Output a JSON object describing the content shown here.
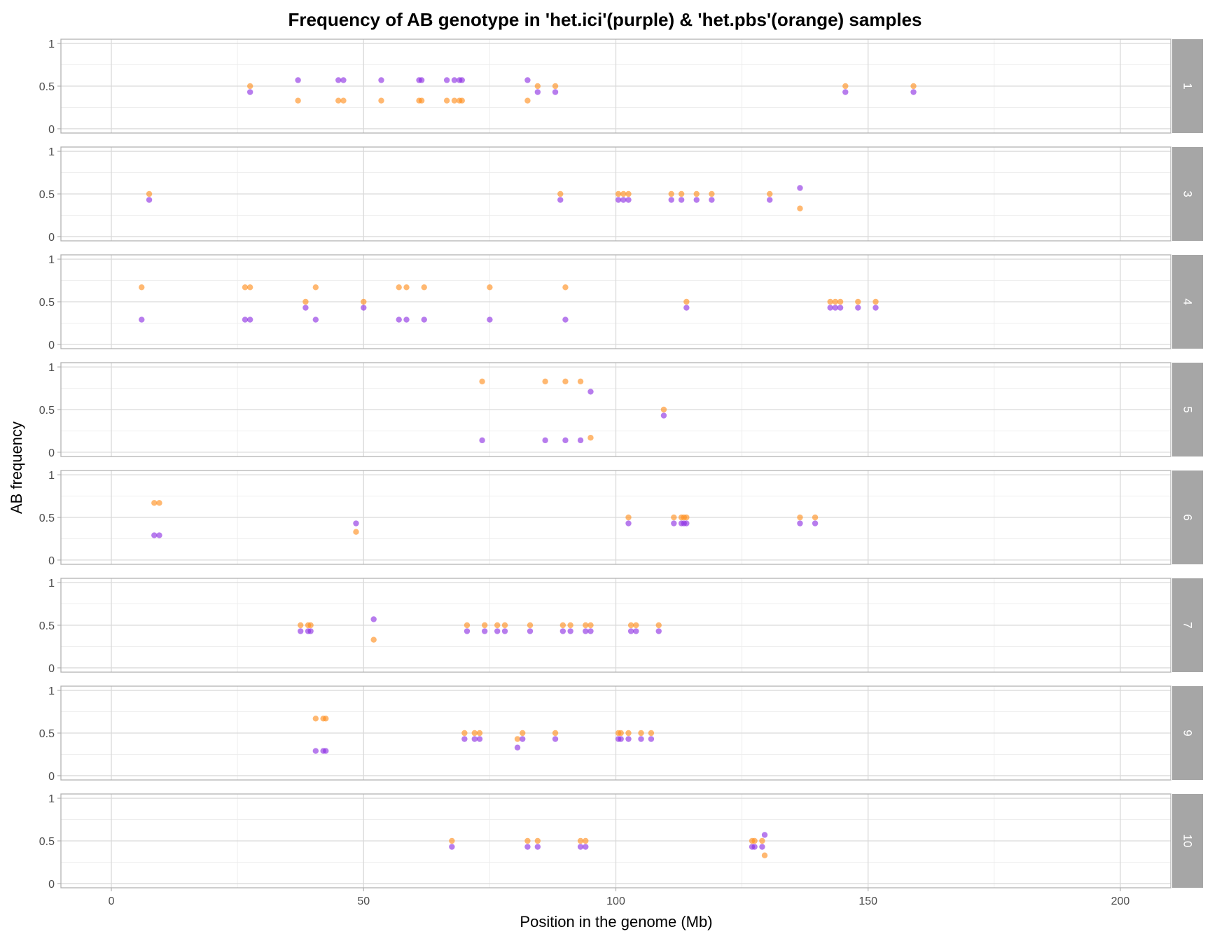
{
  "chart_data": {
    "type": "scatter",
    "title": "Frequency of AB genotype in 'het.ici'(purple) & 'het.pbs'(orange) samples",
    "xlabel": "Position in the genome (Mb)",
    "ylabel": "AB frequency",
    "xlim": [
      -10,
      210
    ],
    "ylim": [
      -0.05,
      1.05
    ],
    "x_ticks": [
      0,
      50,
      100,
      150,
      200
    ],
    "y_ticks": [
      0,
      0.5,
      1
    ],
    "y_tick_labels": [
      "0",
      "0.5",
      "1"
    ],
    "grid": true,
    "colors": {
      "het.ici": "#8a2be2",
      "het.pbs": "#ff8c1a"
    },
    "series_keys": [
      "het.ici",
      "het.pbs"
    ],
    "panels": [
      {
        "label": "1",
        "het.ici": [
          [
            27.5,
            0.43
          ],
          [
            37,
            0.57
          ],
          [
            45,
            0.57
          ],
          [
            46,
            0.57
          ],
          [
            53.5,
            0.57
          ],
          [
            61,
            0.57
          ],
          [
            61.5,
            0.57
          ],
          [
            66.5,
            0.57
          ],
          [
            68,
            0.57
          ],
          [
            69,
            0.57
          ],
          [
            69.5,
            0.57
          ],
          [
            82.5,
            0.57
          ],
          [
            84.5,
            0.43
          ],
          [
            88,
            0.43
          ],
          [
            145.5,
            0.43
          ],
          [
            159,
            0.43
          ]
        ],
        "het.pbs": [
          [
            27.5,
            0.5
          ],
          [
            37,
            0.33
          ],
          [
            45,
            0.33
          ],
          [
            46,
            0.33
          ],
          [
            53.5,
            0.33
          ],
          [
            61,
            0.33
          ],
          [
            61.5,
            0.33
          ],
          [
            66.5,
            0.33
          ],
          [
            68,
            0.33
          ],
          [
            69,
            0.33
          ],
          [
            69.5,
            0.33
          ],
          [
            82.5,
            0.33
          ],
          [
            84.5,
            0.5
          ],
          [
            88,
            0.5
          ],
          [
            145.5,
            0.5
          ],
          [
            159,
            0.5
          ]
        ]
      },
      {
        "label": "3",
        "het.ici": [
          [
            7.5,
            0.43
          ],
          [
            89,
            0.43
          ],
          [
            100.5,
            0.43
          ],
          [
            101.5,
            0.43
          ],
          [
            102.5,
            0.43
          ],
          [
            111,
            0.43
          ],
          [
            113,
            0.43
          ],
          [
            116,
            0.43
          ],
          [
            119,
            0.43
          ],
          [
            130.5,
            0.43
          ],
          [
            136.5,
            0.57
          ]
        ],
        "het.pbs": [
          [
            7.5,
            0.5
          ],
          [
            89,
            0.5
          ],
          [
            100.5,
            0.5
          ],
          [
            101.5,
            0.5
          ],
          [
            102.5,
            0.5
          ],
          [
            111,
            0.5
          ],
          [
            113,
            0.5
          ],
          [
            116,
            0.5
          ],
          [
            119,
            0.5
          ],
          [
            130.5,
            0.5
          ],
          [
            136.5,
            0.33
          ]
        ]
      },
      {
        "label": "4",
        "het.ici": [
          [
            6,
            0.29
          ],
          [
            26.5,
            0.29
          ],
          [
            27.5,
            0.29
          ],
          [
            38.5,
            0.43
          ],
          [
            40.5,
            0.29
          ],
          [
            50,
            0.43
          ],
          [
            57,
            0.29
          ],
          [
            58.5,
            0.29
          ],
          [
            62,
            0.29
          ],
          [
            75,
            0.29
          ],
          [
            90,
            0.29
          ],
          [
            114,
            0.43
          ],
          [
            142.5,
            0.43
          ],
          [
            143.5,
            0.43
          ],
          [
            144.5,
            0.43
          ],
          [
            148,
            0.43
          ],
          [
            151.5,
            0.43
          ]
        ],
        "het.pbs": [
          [
            6,
            0.67
          ],
          [
            26.5,
            0.67
          ],
          [
            27.5,
            0.67
          ],
          [
            38.5,
            0.5
          ],
          [
            40.5,
            0.67
          ],
          [
            50,
            0.5
          ],
          [
            57,
            0.67
          ],
          [
            58.5,
            0.67
          ],
          [
            62,
            0.67
          ],
          [
            75,
            0.67
          ],
          [
            90,
            0.67
          ],
          [
            114,
            0.5
          ],
          [
            142.5,
            0.5
          ],
          [
            143.5,
            0.5
          ],
          [
            144.5,
            0.5
          ],
          [
            148,
            0.5
          ],
          [
            151.5,
            0.5
          ]
        ]
      },
      {
        "label": "5",
        "het.ici": [
          [
            73.5,
            0.14
          ],
          [
            86,
            0.14
          ],
          [
            90,
            0.14
          ],
          [
            93,
            0.14
          ],
          [
            95,
            0.71
          ],
          [
            109.5,
            0.43
          ]
        ],
        "het.pbs": [
          [
            73.5,
            0.83
          ],
          [
            86,
            0.83
          ],
          [
            90,
            0.83
          ],
          [
            93,
            0.83
          ],
          [
            95,
            0.17
          ],
          [
            109.5,
            0.5
          ]
        ]
      },
      {
        "label": "6",
        "het.ici": [
          [
            8.5,
            0.29
          ],
          [
            9.5,
            0.29
          ],
          [
            48.5,
            0.43
          ],
          [
            102.5,
            0.43
          ],
          [
            111.5,
            0.43
          ],
          [
            113,
            0.43
          ],
          [
            113.5,
            0.43
          ],
          [
            114,
            0.43
          ],
          [
            136.5,
            0.43
          ],
          [
            139.5,
            0.43
          ]
        ],
        "het.pbs": [
          [
            8.5,
            0.67
          ],
          [
            9.5,
            0.67
          ],
          [
            48.5,
            0.33
          ],
          [
            102.5,
            0.5
          ],
          [
            111.5,
            0.5
          ],
          [
            113,
            0.5
          ],
          [
            113.5,
            0.5
          ],
          [
            114,
            0.5
          ],
          [
            136.5,
            0.5
          ],
          [
            139.5,
            0.5
          ]
        ]
      },
      {
        "label": "7",
        "het.ici": [
          [
            37.5,
            0.43
          ],
          [
            39,
            0.43
          ],
          [
            39.5,
            0.43
          ],
          [
            52,
            0.57
          ],
          [
            70.5,
            0.43
          ],
          [
            74,
            0.43
          ],
          [
            76.5,
            0.43
          ],
          [
            78,
            0.43
          ],
          [
            83,
            0.43
          ],
          [
            89.5,
            0.43
          ],
          [
            91,
            0.43
          ],
          [
            94,
            0.43
          ],
          [
            95,
            0.43
          ],
          [
            103,
            0.43
          ],
          [
            104,
            0.43
          ],
          [
            108.5,
            0.43
          ]
        ],
        "het.pbs": [
          [
            37.5,
            0.5
          ],
          [
            39,
            0.5
          ],
          [
            39.5,
            0.5
          ],
          [
            52,
            0.33
          ],
          [
            70.5,
            0.5
          ],
          [
            74,
            0.5
          ],
          [
            76.5,
            0.5
          ],
          [
            78,
            0.5
          ],
          [
            83,
            0.5
          ],
          [
            89.5,
            0.5
          ],
          [
            91,
            0.5
          ],
          [
            94,
            0.5
          ],
          [
            95,
            0.5
          ],
          [
            103,
            0.5
          ],
          [
            104,
            0.5
          ],
          [
            108.5,
            0.5
          ]
        ]
      },
      {
        "label": "9",
        "het.ici": [
          [
            40.5,
            0.29
          ],
          [
            42,
            0.29
          ],
          [
            42.5,
            0.29
          ],
          [
            70,
            0.43
          ],
          [
            72,
            0.43
          ],
          [
            73,
            0.43
          ],
          [
            80.5,
            0.33
          ],
          [
            81.5,
            0.43
          ],
          [
            88,
            0.43
          ],
          [
            100.5,
            0.43
          ],
          [
            101,
            0.43
          ],
          [
            102.5,
            0.43
          ],
          [
            105,
            0.43
          ],
          [
            107,
            0.43
          ]
        ],
        "het.pbs": [
          [
            40.5,
            0.67
          ],
          [
            42,
            0.67
          ],
          [
            42.5,
            0.67
          ],
          [
            70,
            0.5
          ],
          [
            72,
            0.5
          ],
          [
            73,
            0.5
          ],
          [
            80.5,
            0.43
          ],
          [
            81.5,
            0.5
          ],
          [
            88,
            0.5
          ],
          [
            100.5,
            0.5
          ],
          [
            101,
            0.5
          ],
          [
            102.5,
            0.5
          ],
          [
            105,
            0.5
          ],
          [
            107,
            0.5
          ]
        ]
      },
      {
        "label": "10",
        "het.ici": [
          [
            67.5,
            0.43
          ],
          [
            82.5,
            0.43
          ],
          [
            84.5,
            0.43
          ],
          [
            93,
            0.43
          ],
          [
            94,
            0.43
          ],
          [
            127,
            0.43
          ],
          [
            127.5,
            0.43
          ],
          [
            129,
            0.43
          ],
          [
            129.5,
            0.57
          ]
        ],
        "het.pbs": [
          [
            67.5,
            0.5
          ],
          [
            82.5,
            0.5
          ],
          [
            84.5,
            0.5
          ],
          [
            93,
            0.5
          ],
          [
            94,
            0.5
          ],
          [
            127,
            0.5
          ],
          [
            127.5,
            0.5
          ],
          [
            129,
            0.5
          ],
          [
            129.5,
            0.33
          ]
        ]
      }
    ]
  }
}
